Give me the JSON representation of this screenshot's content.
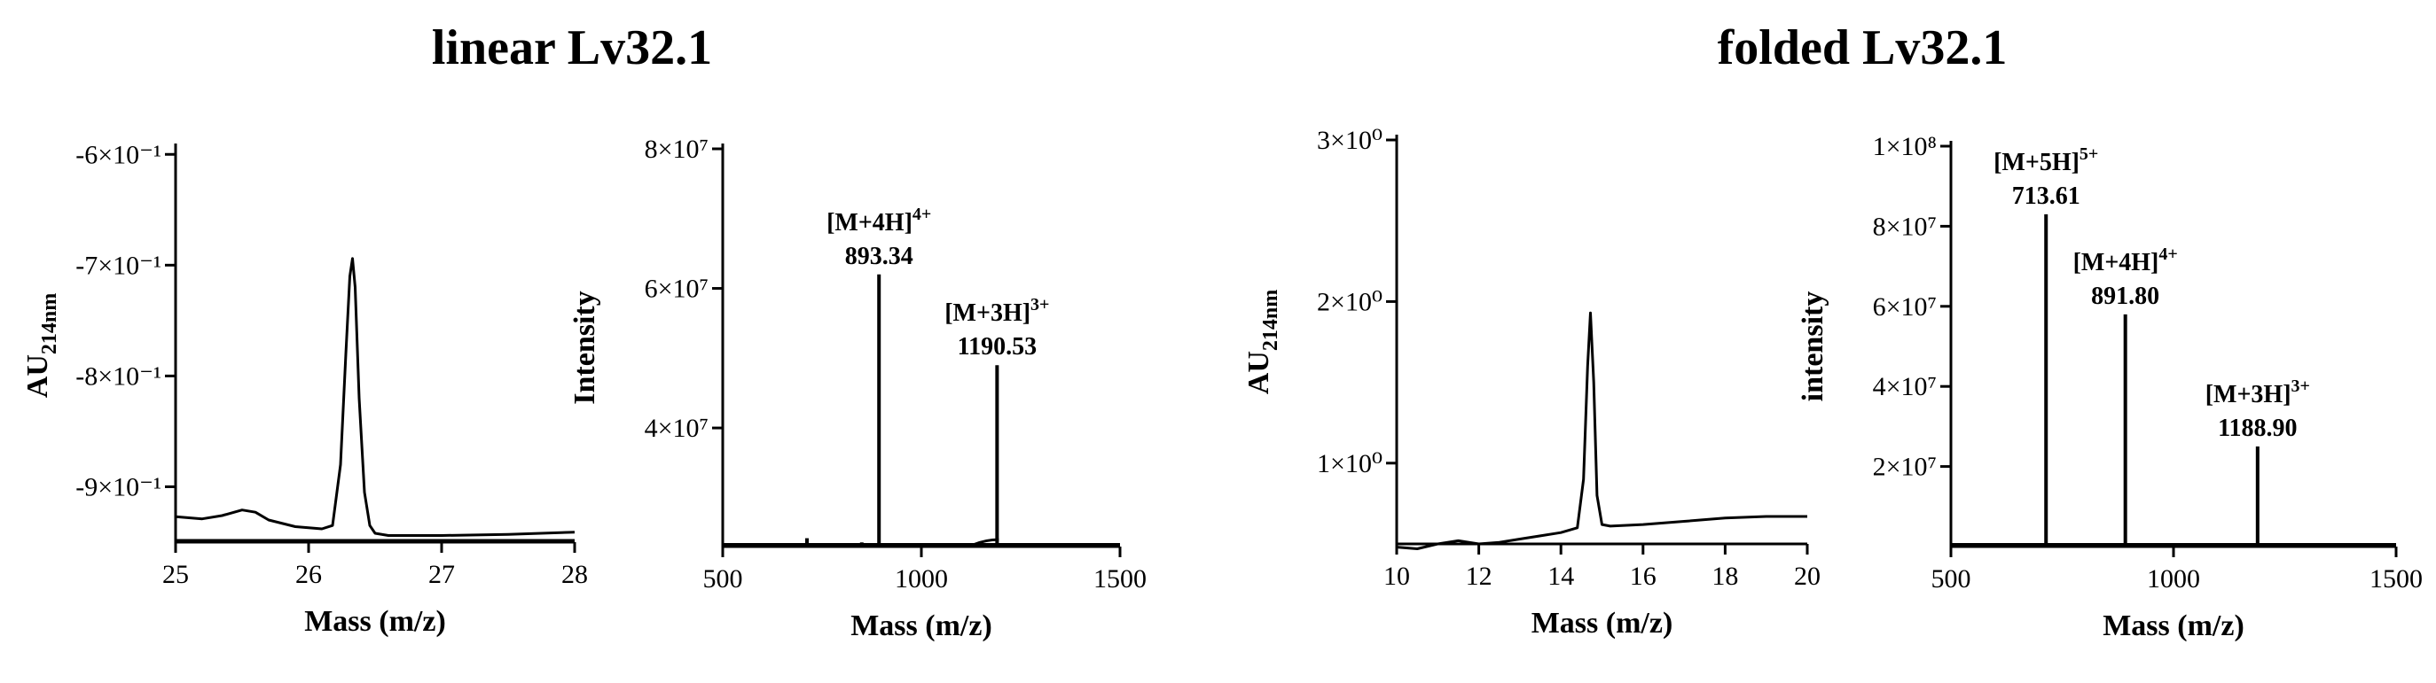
{
  "titles": {
    "left": "linear Lv32.1",
    "right": "folded Lv32.1"
  },
  "chart_data": [
    {
      "type": "line",
      "group": "linear Lv32.1",
      "xlabel": "Mass (m/z)",
      "ylabel": "AU",
      "ylabel_sub": "214nm",
      "xlim": [
        25,
        28
      ],
      "ylim": [
        -0.95,
        -0.595
      ],
      "x_ticks": [
        25,
        26,
        27,
        28
      ],
      "y_ticks": [
        -0.6,
        -0.7,
        -0.8,
        -0.9
      ],
      "y_tick_labels": [
        "-6×10⁻¹",
        "-7×10⁻¹",
        "-8×10⁻¹",
        "-9×10⁻¹"
      ],
      "series": [
        {
          "x": [
            25.0,
            25.2,
            25.35,
            25.5,
            25.6,
            25.7,
            25.9,
            26.1,
            26.18,
            26.24,
            26.28,
            26.31,
            26.33,
            26.35,
            26.38,
            26.42,
            26.46,
            26.5,
            26.6,
            26.8,
            27.0,
            27.5,
            28.0
          ],
          "y": [
            -0.927,
            -0.929,
            -0.926,
            -0.921,
            -0.923,
            -0.93,
            -0.936,
            -0.938,
            -0.935,
            -0.88,
            -0.78,
            -0.71,
            -0.694,
            -0.72,
            -0.82,
            -0.905,
            -0.935,
            -0.942,
            -0.944,
            -0.944,
            -0.944,
            -0.943,
            -0.941
          ]
        }
      ],
      "baseline": -0.95
    },
    {
      "type": "line",
      "group": "linear Lv32.1",
      "xlabel": "Mass (m/z)",
      "ylabel": "Intensity",
      "xlim": [
        500,
        1500
      ],
      "ylim": [
        23000000.0,
        80000000.0
      ],
      "x_ticks": [
        500,
        1000,
        1500
      ],
      "x_tick_labels": [
        "500",
        "1000",
        "1500"
      ],
      "y_ticks": [
        40000000.0,
        60000000.0,
        80000000.0
      ],
      "y_tick_labels": [
        "4×10⁷",
        "6×10⁷",
        "8×10⁷"
      ],
      "baseline": 23000000.0,
      "peaks": [
        {
          "x": 712,
          "y": 24200000.0
        },
        {
          "x": 850,
          "y": 23600000.0
        },
        {
          "x": 893.34,
          "y": 62000000.0
        },
        {
          "x": 1190.53,
          "y": 49000000.0
        }
      ],
      "bump": {
        "x_start": 1130,
        "x_end": 1195,
        "y": 24000000.0
      },
      "annotations": [
        {
          "ion": "[M+4H]",
          "charge": "4+",
          "value": "893.34",
          "x": 893.34,
          "y": 62000000.0
        },
        {
          "ion": "[M+3H]",
          "charge": "3+",
          "value": "1190.53",
          "x": 1190.53,
          "y": 49000000.0
        }
      ]
    },
    {
      "type": "line",
      "group": "folded Lv32.1",
      "xlabel": "Mass (m/z)",
      "ylabel": "AU",
      "ylabel_sub": "214nm",
      "xlim": [
        10,
        20
      ],
      "ylim": [
        0.5,
        3.0
      ],
      "x_ticks": [
        10,
        12,
        14,
        16,
        18,
        20
      ],
      "y_ticks": [
        1,
        2,
        3
      ],
      "y_tick_labels": [
        "1×10⁰",
        "2×10⁰",
        "3×10⁰"
      ],
      "series": [
        {
          "x": [
            10.0,
            10.5,
            11.0,
            11.5,
            12.0,
            12.5,
            13.0,
            13.5,
            14.0,
            14.4,
            14.55,
            14.65,
            14.72,
            14.8,
            14.88,
            15.0,
            15.2,
            16.0,
            17.0,
            18.0,
            19.0,
            20.0
          ],
          "y": [
            0.48,
            0.47,
            0.5,
            0.52,
            0.5,
            0.51,
            0.53,
            0.55,
            0.57,
            0.6,
            0.9,
            1.6,
            1.93,
            1.5,
            0.8,
            0.62,
            0.61,
            0.62,
            0.64,
            0.66,
            0.67,
            0.67
          ]
        }
      ]
    },
    {
      "type": "line",
      "group": "folded Lv32.1",
      "xlabel": "Mass (m/z)",
      "ylabel": "intensity",
      "xlim": [
        500,
        1500
      ],
      "ylim": [
        0,
        100000000.0
      ],
      "x_ticks": [
        500,
        1000,
        1500
      ],
      "x_tick_labels": [
        "500",
        "1000",
        "1500"
      ],
      "y_ticks": [
        20000000.0,
        40000000.0,
        60000000.0,
        80000000.0,
        100000000.0
      ],
      "y_tick_labels": [
        "2×10⁷",
        "4×10⁷",
        "6×10⁷",
        "8×10⁷",
        "1×10⁸"
      ],
      "baseline": 0,
      "peaks": [
        {
          "x": 713.61,
          "y": 83000000.0
        },
        {
          "x": 891.8,
          "y": 58000000.0
        },
        {
          "x": 1188.9,
          "y": 25000000.0
        }
      ],
      "annotations": [
        {
          "ion": "[M+5H]",
          "charge": "5+",
          "value": "713.61",
          "x": 713.61,
          "y": 83000000.0
        },
        {
          "ion": "[M+4H]",
          "charge": "4+",
          "value": "891.80",
          "x": 891.8,
          "y": 58000000.0
        },
        {
          "ion": "[M+3H]",
          "charge": "3+",
          "value": "1188.90",
          "x": 1188.9,
          "y": 25000000.0
        }
      ]
    }
  ]
}
